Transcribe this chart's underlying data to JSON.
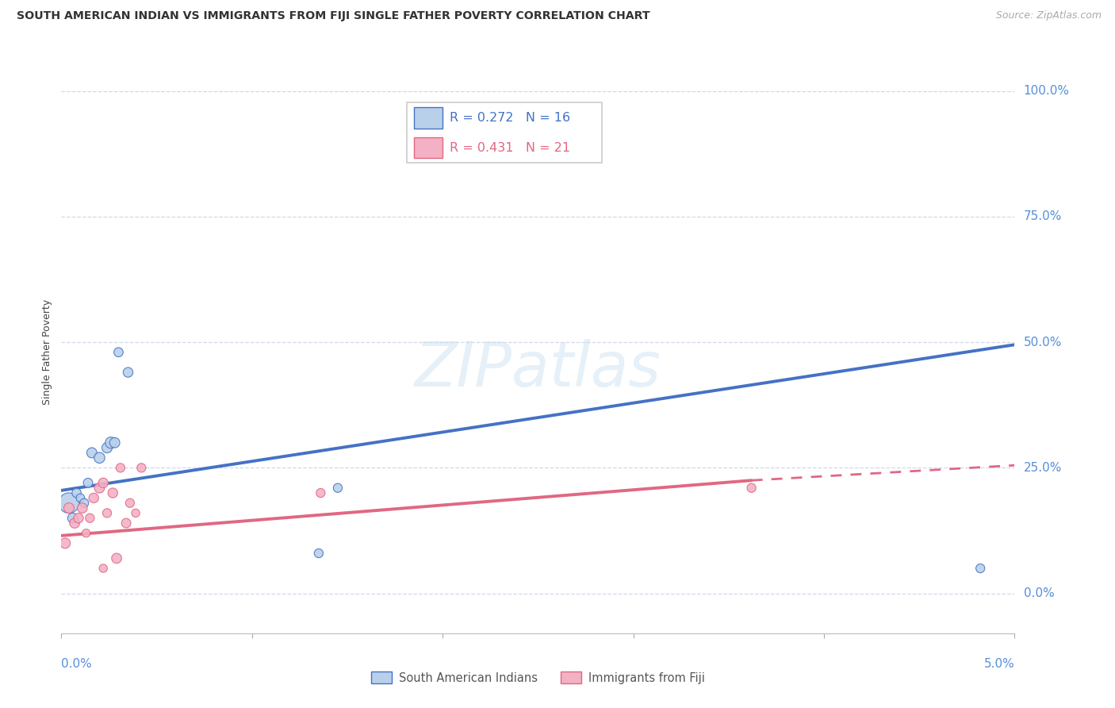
{
  "title": "SOUTH AMERICAN INDIAN VS IMMIGRANTS FROM FIJI SINGLE FATHER POVERTY CORRELATION CHART",
  "source": "Source: ZipAtlas.com",
  "ylabel": "Single Father Poverty",
  "yaxis_values": [
    0,
    25,
    50,
    75,
    100
  ],
  "xmin": 0.0,
  "xmax": 5.0,
  "ymin": -8,
  "ymax": 104,
  "legend_blue_r": "0.272",
  "legend_blue_n": "16",
  "legend_pink_r": "0.431",
  "legend_pink_n": "21",
  "legend_label_blue": "South American Indians",
  "legend_label_pink": "Immigrants from Fiji",
  "blue_color": "#b8d0ea",
  "blue_line_color": "#4472c4",
  "pink_color": "#f4b0c4",
  "pink_line_color": "#e06882",
  "blue_points_x": [
    0.04,
    0.06,
    0.08,
    0.1,
    0.12,
    0.14,
    0.16,
    0.2,
    0.24,
    0.26,
    0.28,
    0.3,
    0.35,
    1.35,
    1.45,
    4.82
  ],
  "blue_points_y": [
    18,
    15,
    20,
    19,
    18,
    22,
    28,
    27,
    29,
    30,
    30,
    48,
    44,
    8,
    21,
    5
  ],
  "blue_points_size": [
    340,
    85,
    70,
    60,
    65,
    72,
    85,
    95,
    88,
    105,
    85,
    70,
    78,
    65,
    65,
    65
  ],
  "pink_points_x": [
    0.02,
    0.04,
    0.07,
    0.09,
    0.11,
    0.13,
    0.15,
    0.17,
    0.2,
    0.22,
    0.24,
    0.27,
    0.29,
    0.31,
    0.34,
    0.36,
    0.39,
    0.42,
    1.36,
    3.62,
    0.22
  ],
  "pink_points_y": [
    10,
    17,
    14,
    15,
    17,
    12,
    15,
    19,
    21,
    22,
    16,
    20,
    7,
    25,
    14,
    18,
    16,
    25,
    20,
    21,
    5
  ],
  "pink_points_size": [
    88,
    88,
    82,
    78,
    82,
    55,
    65,
    78,
    85,
    78,
    65,
    78,
    82,
    65,
    72,
    65,
    55,
    65,
    65,
    65,
    55
  ],
  "blue_line_x0": 0.0,
  "blue_line_x1": 5.0,
  "blue_line_y0": 20.5,
  "blue_line_y1": 49.5,
  "pink_solid_x0": 0.0,
  "pink_solid_x1": 3.62,
  "pink_solid_y0": 11.5,
  "pink_solid_y1": 22.5,
  "pink_dash_x0": 3.62,
  "pink_dash_x1": 5.0,
  "pink_dash_y0": 22.5,
  "pink_dash_y1": 25.5,
  "background_color": "#ffffff",
  "grid_color": "#d0d8e8",
  "watermark": "ZIPatlas"
}
